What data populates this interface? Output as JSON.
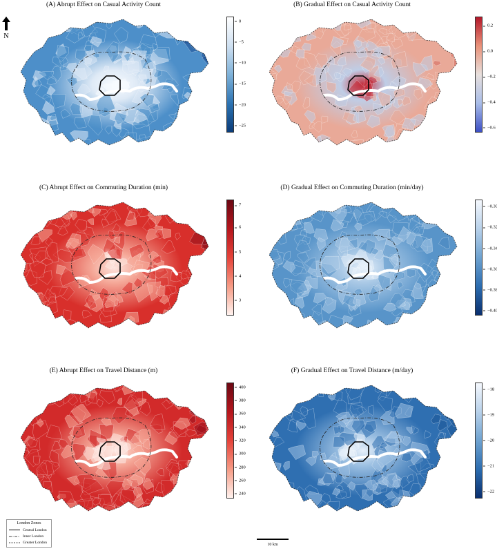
{
  "north_label": "N",
  "panels": [
    {
      "id": "A",
      "title": "(A) Abrupt Effect on Casual Activity Count",
      "cmap": [
        "#ffffff",
        "#cfe0f1",
        "#7fb2d9",
        "#2d74b3",
        "#0b3c79"
      ],
      "ticks": [
        "0",
        "−5",
        "−10",
        "−15",
        "−20",
        "−25"
      ],
      "tick_pos": [
        0.04,
        0.22,
        0.4,
        0.58,
        0.76,
        0.94
      ],
      "inner_fill": "#dfeaf6",
      "outer_fill": "#4d8fc9",
      "center_fill": "#f7fbff",
      "east_fill": "#1a4f93"
    },
    {
      "id": "B",
      "title": "(B) Gradual Effect on Casual Activity Count",
      "cmap": [
        "#b4182a",
        "#e9927a",
        "#e8e0dd",
        "#a9bde8",
        "#3c4fc5"
      ],
      "ticks": [
        "0.2",
        "0.0",
        "−0.2",
        "−0.4",
        "−0.6"
      ],
      "tick_pos": [
        0.08,
        0.3,
        0.52,
        0.74,
        0.96
      ],
      "inner_fill": "#bfcde6",
      "outer_fill": "#e9a998",
      "center_fill": "#c42b39",
      "east_fill": "#d56a5f"
    },
    {
      "id": "C",
      "title": "(C) Abrupt Effect on Commuting Duration (min)",
      "cmap": [
        "#6b0814",
        "#b5161d",
        "#e5433a",
        "#f69b85",
        "#fff2ee"
      ],
      "ticks": [
        "7",
        "6",
        "5",
        "4",
        "3"
      ],
      "tick_pos": [
        0.05,
        0.24,
        0.45,
        0.66,
        0.87
      ],
      "inner_fill": "#f5a898",
      "outer_fill": "#d82f2b",
      "center_fill": "#fde5df",
      "east_fill": "#8f0e19"
    },
    {
      "id": "D",
      "title": "(D) Gradual Effect on Commuting Duration (min/day)",
      "cmap": [
        "#f5f8fd",
        "#b8d1ea",
        "#6ea2d0",
        "#2c6db0",
        "#0a2f6e"
      ],
      "ticks": [
        "−0.30",
        "−0.32",
        "−0.34",
        "−0.36",
        "−0.38",
        "−0.40"
      ],
      "tick_pos": [
        0.06,
        0.24,
        0.42,
        0.6,
        0.78,
        0.96
      ],
      "inner_fill": "#aac9e6",
      "outer_fill": "#5894c9",
      "center_fill": "#e7f0fa",
      "east_fill": "#4a86c0"
    },
    {
      "id": "E",
      "title": "(E) Abrupt Effect on Travel Distance (m)",
      "cmap": [
        "#6b0814",
        "#b5161d",
        "#e5433a",
        "#f69b85",
        "#fff2ee"
      ],
      "ticks": [
        "400",
        "380",
        "360",
        "340",
        "320",
        "300",
        "280",
        "260",
        "240"
      ],
      "tick_pos": [
        0.04,
        0.155,
        0.27,
        0.385,
        0.5,
        0.615,
        0.73,
        0.845,
        0.96
      ],
      "inner_fill": "#f5a898",
      "outer_fill": "#d22a2a",
      "center_fill": "#fde8e2",
      "east_fill": "#990f1c"
    },
    {
      "id": "F",
      "title": "(F) Gradual Effect on Travel Distance (m/day)",
      "cmap": [
        "#f5f8fd",
        "#b8d1ea",
        "#6ea2d0",
        "#2c6db0",
        "#0a2f6e"
      ],
      "ticks": [
        "−18",
        "−19",
        "−20",
        "−21",
        "−22"
      ],
      "tick_pos": [
        0.06,
        0.28,
        0.5,
        0.72,
        0.94
      ],
      "inner_fill": "#9cc0e2",
      "outer_fill": "#2f6fb1",
      "center_fill": "#e7f0fa",
      "east_fill": "#1c5596"
    }
  ],
  "legend": {
    "title": "London Zones",
    "items": [
      {
        "label": "Central London",
        "style": "solid"
      },
      {
        "label": "Inner London",
        "style": "dashdot"
      },
      {
        "label": "Greater London",
        "style": "dashed"
      }
    ]
  },
  "scalebar": {
    "label": "10 km"
  }
}
